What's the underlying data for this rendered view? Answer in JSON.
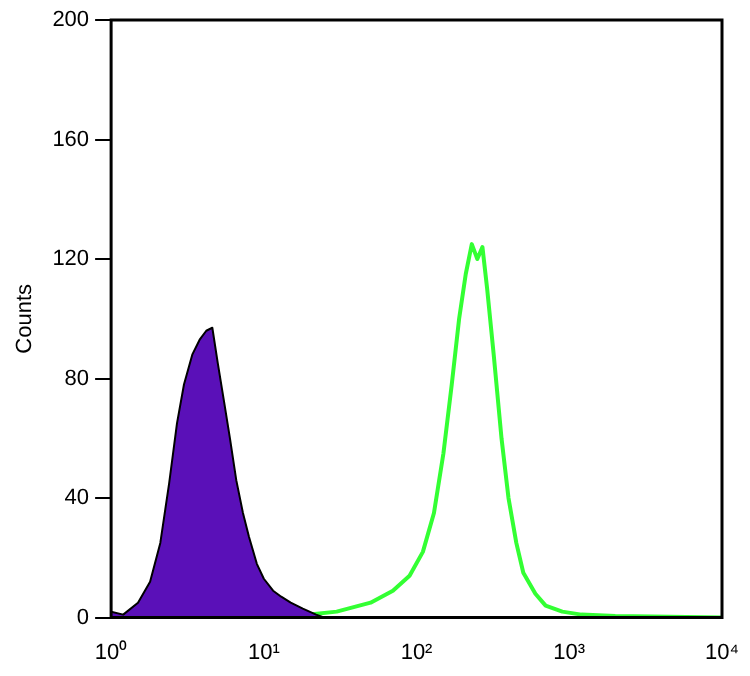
{
  "chart_data": {
    "type": "line",
    "ylabel": "Counts",
    "log": "x",
    "grid": false,
    "marker": "none",
    "xlim": [
      1,
      10000
    ],
    "ylim": [
      0,
      200
    ],
    "xticks": [
      {
        "value": 1,
        "label": "10⁰"
      },
      {
        "value": 10,
        "label": "10¹"
      },
      {
        "value": 100,
        "label": "10²"
      },
      {
        "value": 1000,
        "label": "10³"
      },
      {
        "value": 10000,
        "label": "10⁴"
      }
    ],
    "yticks": [
      0,
      40,
      80,
      120,
      160,
      200
    ],
    "series": [
      {
        "type": "area",
        "color": "#5a10b8",
        "x": [
          1,
          1.2,
          1.5,
          1.8,
          2.1,
          2.4,
          2.7,
          3.0,
          3.4,
          3.8,
          4.2,
          4.6,
          5.0,
          5.5,
          6.0,
          6.6,
          7.3,
          8.0,
          9,
          10,
          11.5,
          13,
          15,
          18,
          22,
          25
        ],
        "values": [
          2,
          1,
          5,
          12,
          25,
          45,
          65,
          78,
          88,
          93,
          96,
          97,
          85,
          72,
          60,
          46,
          35,
          27,
          18,
          13,
          9,
          7,
          5,
          3,
          1,
          0
        ]
      },
      {
        "type": "line",
        "color": "#33ff33",
        "x": [
          20,
          30,
          50,
          70,
          90,
          110,
          130,
          150,
          170,
          190,
          210,
          230,
          250,
          270,
          290,
          320,
          360,
          400,
          450,
          500,
          600,
          700,
          900,
          1200,
          2000,
          10000
        ],
        "values": [
          1,
          2,
          5,
          9,
          14,
          22,
          35,
          55,
          78,
          100,
          115,
          125,
          120,
          124,
          110,
          88,
          60,
          40,
          25,
          15,
          8,
          4,
          2,
          1,
          0.5,
          0
        ]
      }
    ]
  }
}
